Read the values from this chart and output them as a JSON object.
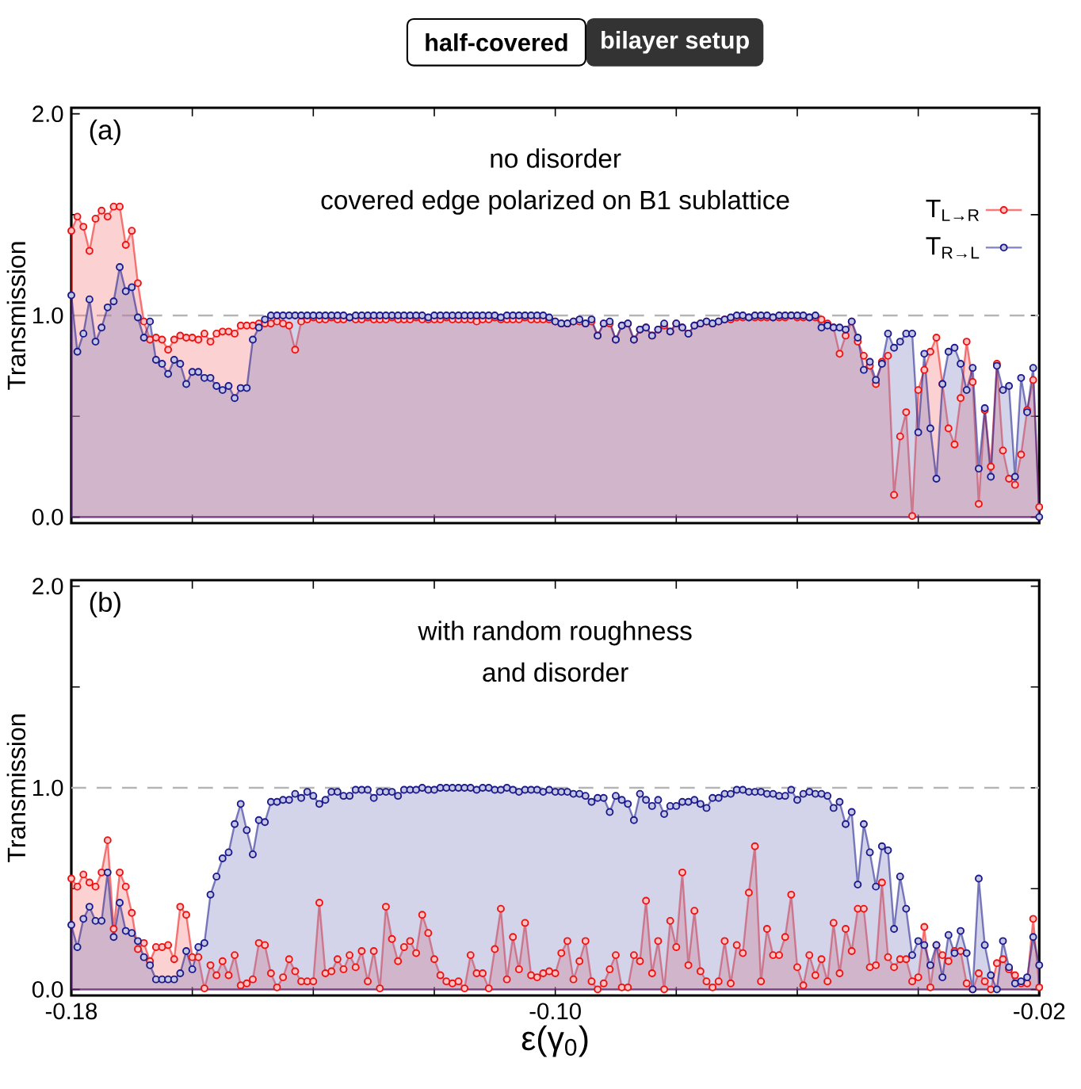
{
  "chart_data": [
    {
      "type": "area",
      "title": "half-covered",
      "subtitle": "bilayer setup",
      "ylabel": "Transmission",
      "annotations": [
        "(a)",
        "no disorder",
        "covered edge polarized on B1 sublattice"
      ],
      "xlim": [
        -0.18,
        -0.02
      ],
      "ylim": [
        -0.03,
        2.03
      ],
      "xticks": [
        -0.18,
        {
          "value": -0.16,
          "label": null
        },
        {
          "value": -0.14,
          "label": null
        },
        {
          "value": -0.12,
          "label": null
        },
        {
          "value": -0.1,
          "label": null
        },
        {
          "value": -0.08,
          "label": null
        },
        {
          "value": -0.06,
          "label": null
        },
        {
          "value": -0.04,
          "label": null
        },
        -0.02
      ],
      "yticks": [
        {
          "value": 0,
          "label": "0.0"
        },
        {
          "value": 0.5,
          "label": null
        },
        {
          "value": 1,
          "label": "1.0"
        },
        {
          "value": 1.5,
          "label": null
        },
        {
          "value": 2,
          "label": "2.0"
        }
      ],
      "tick_labels": "y",
      "legend": "top right",
      "marker": "circle",
      "line_style": "solid",
      "ref_lines": [
        {
          "axis": "y",
          "value": 1,
          "color": "#b4b4b4",
          "line_style": "dashed"
        }
      ],
      "x": [
        -0.18,
        -0.179,
        -0.178,
        -0.177,
        -0.176,
        -0.175,
        -0.174,
        -0.173,
        -0.172,
        -0.171,
        -0.17,
        -0.169,
        -0.168,
        -0.167,
        -0.166,
        -0.165,
        -0.164,
        -0.163,
        -0.162,
        -0.161,
        -0.16,
        -0.159,
        -0.158,
        -0.157,
        -0.156,
        -0.155,
        -0.154,
        -0.153,
        -0.152,
        -0.151,
        -0.15,
        -0.149,
        -0.148,
        -0.147,
        -0.146,
        -0.145,
        -0.144,
        -0.143,
        -0.142,
        -0.141,
        -0.14,
        -0.139,
        -0.138,
        -0.137,
        -0.136,
        -0.135,
        -0.134,
        -0.133,
        -0.132,
        -0.131,
        -0.13,
        -0.129,
        -0.128,
        -0.127,
        -0.126,
        -0.125,
        -0.124,
        -0.123,
        -0.122,
        -0.121,
        -0.12,
        -0.119,
        -0.118,
        -0.117,
        -0.116,
        -0.115,
        -0.114,
        -0.113,
        -0.112,
        -0.111,
        -0.11,
        -0.109,
        -0.108,
        -0.107,
        -0.106,
        -0.105,
        -0.104,
        -0.103,
        -0.102,
        -0.101,
        -0.1,
        -0.099,
        -0.098,
        -0.097,
        -0.096,
        -0.095,
        -0.094,
        -0.093,
        -0.092,
        -0.091,
        -0.09,
        -0.089,
        -0.088,
        -0.087,
        -0.086,
        -0.085,
        -0.084,
        -0.083,
        -0.082,
        -0.081,
        -0.08,
        -0.079,
        -0.078,
        -0.077,
        -0.076,
        -0.075,
        -0.074,
        -0.073,
        -0.072,
        -0.071,
        -0.07,
        -0.069,
        -0.068,
        -0.067,
        -0.066,
        -0.065,
        -0.064,
        -0.063,
        -0.062,
        -0.061,
        -0.06,
        -0.059,
        -0.058,
        -0.057,
        -0.056,
        -0.055,
        -0.054,
        -0.053,
        -0.052,
        -0.051,
        -0.05,
        -0.049,
        -0.048,
        -0.047,
        -0.046,
        -0.045,
        -0.044,
        -0.043,
        -0.042,
        -0.041,
        -0.04,
        -0.039,
        -0.038,
        -0.037,
        -0.036,
        -0.035,
        -0.034,
        -0.033,
        -0.032,
        -0.031,
        -0.03,
        -0.029,
        -0.028,
        -0.027,
        -0.026,
        -0.025,
        -0.024,
        -0.023,
        -0.022,
        -0.021,
        -0.02
      ],
      "series": [
        {
          "name": "T$_{L→R}$",
          "color": "#ee1111",
          "values": [
            1.42,
            1.49,
            1.44,
            1.32,
            1.48,
            1.52,
            1.49,
            1.54,
            1.54,
            1.35,
            1.42,
            1.16,
            0.97,
            0.88,
            0.89,
            0.88,
            0.83,
            0.88,
            0.9,
            0.89,
            0.89,
            0.88,
            0.91,
            0.87,
            0.91,
            0.92,
            0.92,
            0.91,
            0.95,
            0.95,
            0.95,
            0.96,
            0.96,
            0.96,
            0.97,
            0.96,
            0.95,
            0.83,
            0.97,
            0.98,
            0.99,
            0.98,
            0.98,
            0.99,
            0.98,
            0.98,
            0.99,
            0.98,
            0.98,
            0.99,
            0.98,
            0.98,
            0.98,
            0.99,
            0.98,
            0.98,
            0.98,
            0.99,
            0.98,
            0.98,
            0.98,
            0.98,
            0.99,
            0.98,
            0.98,
            0.98,
            0.98,
            0.97,
            0.98,
            0.98,
            0.99,
            0.98,
            0.98,
            0.98,
            0.98,
            0.99,
            0.98,
            0.98,
            0.98,
            0.98,
            0.97,
            0.96,
            0.96,
            0.97,
            0.97,
            0.96,
            0.97,
            0.9,
            0.96,
            0.96,
            0.88,
            0.95,
            0.96,
            0.88,
            0.93,
            0.94,
            0.9,
            0.93,
            0.95,
            0.92,
            0.96,
            0.94,
            0.91,
            0.95,
            0.96,
            0.97,
            0.96,
            0.97,
            0.98,
            0.98,
            0.99,
            0.99,
            0.99,
            0.99,
            0.99,
            0.99,
            0.99,
            0.99,
            0.99,
            1.0,
            0.99,
            0.99,
            0.99,
            0.99,
            0.98,
            0.96,
            0.94,
            0.81,
            0.9,
            0.97,
            0.87,
            0.8,
            0.75,
            0.66,
            0.77,
            0.8,
            0.11,
            0.4,
            0.52,
            0.005,
            0.63,
            0.73,
            0.82,
            0.89,
            0.66,
            0.44,
            0.36,
            0.59,
            0.87,
            0.67,
            0.065,
            0.53,
            0.25,
            0.76,
            0.33,
            0.19,
            0.16,
            0.31,
            0.53,
            0.68,
            0.05
          ]
        },
        {
          "name": "T$_{R→L}$",
          "color": "#1a1a8c",
          "values": [
            1.1,
            0.82,
            0.91,
            1.08,
            0.87,
            0.94,
            1.04,
            1.07,
            1.24,
            1.12,
            1.14,
            0.99,
            0.89,
            0.97,
            0.78,
            0.76,
            0.71,
            0.78,
            0.76,
            0.66,
            0.72,
            0.72,
            0.69,
            0.69,
            0.65,
            0.63,
            0.65,
            0.59,
            0.64,
            0.64,
            0.88,
            0.94,
            0.98,
            1.0,
            1.0,
            1.0,
            1.0,
            1.0,
            1.0,
            1.0,
            1.0,
            1.0,
            1.0,
            1.0,
            1.0,
            1.0,
            0.99,
            1.0,
            1.0,
            1.0,
            1.0,
            1.0,
            1.0,
            1.0,
            1.0,
            1.0,
            1.0,
            1.0,
            1.0,
            0.99,
            1.0,
            1.0,
            1.0,
            1.0,
            1.0,
            1.0,
            1.0,
            1.0,
            1.0,
            1.0,
            1.0,
            0.99,
            1.0,
            1.0,
            1.0,
            1.0,
            1.0,
            1.0,
            1.0,
            0.99,
            0.97,
            0.96,
            0.96,
            0.97,
            0.98,
            0.96,
            0.98,
            0.9,
            0.96,
            0.97,
            0.88,
            0.95,
            0.96,
            0.88,
            0.93,
            0.94,
            0.9,
            0.93,
            0.96,
            0.92,
            0.96,
            0.94,
            0.91,
            0.95,
            0.96,
            0.97,
            0.96,
            0.97,
            0.98,
            0.99,
            1.0,
            1.0,
            0.99,
            1.0,
            1.0,
            1.0,
            0.99,
            1.0,
            1.0,
            1.0,
            1.0,
            1.0,
            0.99,
            1.0,
            0.94,
            0.95,
            0.94,
            0.94,
            0.93,
            0.97,
            0.89,
            0.73,
            0.77,
            0.68,
            0.76,
            0.91,
            0.84,
            0.87,
            0.91,
            0.91,
            0.42,
            0.81,
            0.44,
            0.19,
            0.66,
            0.82,
            0.84,
            0.76,
            0.63,
            0.74,
            0.24,
            0.54,
            0.2,
            0.75,
            0.63,
            0.65,
            0.2,
            0.69,
            0.52,
            0.74,
            0
          ]
        }
      ]
    },
    {
      "type": "area",
      "xlabel": "ε(γ$_{0}$)",
      "ylabel": "Transmission",
      "annotations": [
        "(b)",
        "with random roughness",
        "and disorder"
      ],
      "xlim": [
        -0.18,
        -0.02
      ],
      "ylim": [
        -0.03,
        2.03
      ],
      "xticks": [
        -0.18,
        {
          "value": -0.16,
          "label": null
        },
        {
          "value": -0.14,
          "label": null
        },
        {
          "value": -0.12,
          "label": null
        },
        {
          "value": -0.1,
          "label": "-0.10"
        },
        {
          "value": -0.08,
          "label": null
        },
        {
          "value": -0.06,
          "label": null
        },
        {
          "value": -0.04,
          "label": null
        },
        -0.02
      ],
      "yticks": [
        {
          "value": 0,
          "label": "0.0"
        },
        {
          "value": 0.5,
          "label": null
        },
        {
          "value": 1,
          "label": "1.0"
        },
        {
          "value": 1.5,
          "label": null
        },
        {
          "value": 2,
          "label": "2.0"
        }
      ],
      "marker": "circle",
      "line_style": "solid",
      "ref_lines": [
        {
          "axis": "y",
          "value": 1,
          "color": "#b4b4b4",
          "line_style": "dashed"
        }
      ],
      "x": [
        -0.18,
        -0.179,
        -0.178,
        -0.177,
        -0.176,
        -0.175,
        -0.174,
        -0.173,
        -0.172,
        -0.171,
        -0.17,
        -0.169,
        -0.168,
        -0.167,
        -0.166,
        -0.165,
        -0.164,
        -0.163,
        -0.162,
        -0.161,
        -0.16,
        -0.159,
        -0.158,
        -0.157,
        -0.156,
        -0.155,
        -0.154,
        -0.153,
        -0.152,
        -0.151,
        -0.15,
        -0.149,
        -0.148,
        -0.147,
        -0.146,
        -0.145,
        -0.144,
        -0.143,
        -0.142,
        -0.141,
        -0.14,
        -0.139,
        -0.138,
        -0.137,
        -0.136,
        -0.135,
        -0.134,
        -0.133,
        -0.132,
        -0.131,
        -0.13,
        -0.129,
        -0.128,
        -0.127,
        -0.126,
        -0.125,
        -0.124,
        -0.123,
        -0.122,
        -0.121,
        -0.12,
        -0.119,
        -0.118,
        -0.117,
        -0.116,
        -0.115,
        -0.114,
        -0.113,
        -0.112,
        -0.111,
        -0.11,
        -0.109,
        -0.108,
        -0.107,
        -0.106,
        -0.105,
        -0.104,
        -0.103,
        -0.102,
        -0.101,
        -0.1,
        -0.099,
        -0.098,
        -0.097,
        -0.096,
        -0.095,
        -0.094,
        -0.093,
        -0.092,
        -0.091,
        -0.09,
        -0.089,
        -0.088,
        -0.087,
        -0.086,
        -0.085,
        -0.084,
        -0.083,
        -0.082,
        -0.081,
        -0.08,
        -0.079,
        -0.078,
        -0.077,
        -0.076,
        -0.075,
        -0.074,
        -0.073,
        -0.072,
        -0.071,
        -0.07,
        -0.069,
        -0.068,
        -0.067,
        -0.066,
        -0.065,
        -0.064,
        -0.063,
        -0.062,
        -0.061,
        -0.06,
        -0.059,
        -0.058,
        -0.057,
        -0.056,
        -0.055,
        -0.054,
        -0.053,
        -0.052,
        -0.051,
        -0.05,
        -0.049,
        -0.048,
        -0.047,
        -0.046,
        -0.045,
        -0.044,
        -0.043,
        -0.042,
        -0.041,
        -0.04,
        -0.039,
        -0.038,
        -0.037,
        -0.036,
        -0.035,
        -0.034,
        -0.033,
        -0.032,
        -0.031,
        -0.03,
        -0.029,
        -0.028,
        -0.027,
        -0.026,
        -0.025,
        -0.024,
        -0.023,
        -0.022,
        -0.021,
        -0.02
      ],
      "series": [
        {
          "color": "#ee1111",
          "values": [
            0.55,
            0.51,
            0.57,
            0.53,
            0.51,
            0.58,
            0.74,
            0.3,
            0.58,
            0.51,
            0.38,
            0.2,
            0.23,
            0.14,
            0.21,
            0.21,
            0.22,
            0.15,
            0.41,
            0.37,
            0.16,
            0.16,
            0.005,
            0.12,
            0.07,
            0.14,
            0.07,
            0.17,
            0.02,
            0.03,
            0.05,
            0.23,
            0.22,
            0.08,
            0.01,
            0.06,
            0.15,
            0.09,
            0.04,
            0.04,
            0.04,
            0.43,
            0.08,
            0.09,
            0.15,
            0.1,
            0.17,
            0.11,
            0.19,
            0.04,
            0.19,
            0.005,
            0.41,
            0.25,
            0.14,
            0.21,
            0.24,
            0.18,
            0.37,
            0.28,
            0.15,
            0.07,
            0.04,
            0.03,
            0.04,
            0.005,
            0.17,
            0.08,
            0.08,
            0.005,
            0.2,
            0.4,
            0.05,
            0.26,
            0.1,
            0.33,
            0.07,
            0.06,
            0.08,
            0.09,
            0.08,
            0.18,
            0.24,
            0.05,
            0.14,
            0.24,
            0.04,
            0,
            0.03,
            0.1,
            0.17,
            0.01,
            0.01,
            0.17,
            0.14,
            0.44,
            0.08,
            0.24,
            0,
            0.34,
            0.21,
            0.58,
            0.12,
            0.39,
            0.09,
            0.04,
            0.01,
            0.04,
            0.24,
            0.03,
            0.22,
            0.18,
            0.48,
            0.71,
            0.04,
            0.3,
            0.17,
            0.17,
            0.26,
            0.47,
            0.11,
            0.02,
            0.17,
            0.07,
            0.15,
            0.04,
            0.33,
            0.08,
            0.3,
            0.19,
            0.4,
            0.4,
            0.11,
            0.12,
            0.53,
            0.16,
            0.11,
            0.15,
            0.15,
            0.04,
            0.06,
            0.31,
            0.01,
            0.22,
            0.17,
            0.14,
            0.19,
            0.19,
            0.03,
            0,
            0.08,
            0.04,
            0,
            0.13,
            0.15,
            0.1,
            0.07,
            0.03,
            0.03,
            0.35,
            0.01
          ]
        },
        {
          "color": "#1a1a8c",
          "values": [
            0.32,
            0.21,
            0.35,
            0.41,
            0.34,
            0.34,
            0.58,
            0.26,
            0.43,
            0.29,
            0.28,
            0.24,
            0.16,
            0.12,
            0.05,
            0.05,
            0.05,
            0.05,
            0.08,
            0.19,
            0.1,
            0.21,
            0.23,
            0.47,
            0.56,
            0.65,
            0.68,
            0.82,
            0.92,
            0.79,
            0.67,
            0.84,
            0.83,
            0.93,
            0.93,
            0.94,
            0.94,
            0.97,
            0.95,
            0.98,
            0.96,
            0.92,
            0.94,
            0.98,
            0.98,
            0.96,
            0.96,
            0.99,
            0.99,
            0.99,
            0.95,
            0.98,
            0.98,
            0.98,
            0.96,
            0.99,
            0.99,
            0.99,
            1.0,
            0.99,
            0.99,
            1.0,
            1.0,
            1.0,
            1.0,
            1.0,
            1.0,
            0.99,
            1.0,
            1.0,
            0.99,
            0.99,
            1.0,
            0.99,
            0.98,
            0.99,
            0.99,
            0.99,
            0.98,
            0.99,
            0.98,
            0.98,
            0.98,
            0.97,
            0.97,
            0.96,
            0.93,
            0.95,
            0.95,
            0.88,
            0.96,
            0.94,
            0.92,
            0.84,
            0.97,
            0.94,
            0.91,
            0.94,
            0.87,
            0.91,
            0.91,
            0.93,
            0.93,
            0.94,
            0.92,
            0.9,
            0.95,
            0.95,
            0.97,
            0.97,
            0.99,
            0.99,
            0.98,
            0.98,
            0.98,
            0.97,
            0.97,
            0.96,
            0.96,
            0.99,
            0.94,
            0.97,
            0.98,
            0.97,
            0.97,
            0.96,
            0.9,
            0.93,
            0.82,
            0.88,
            0.52,
            0.82,
            0.68,
            0.51,
            0.71,
            0.69,
            0.3,
            0.56,
            0.4,
            0.17,
            0.24,
            0.22,
            0.12,
            0.22,
            0.06,
            0.27,
            0.18,
            0.29,
            0.18,
            0,
            0.55,
            0.22,
            0.07,
            0,
            0.24,
            0.11,
            0.03,
            0.04,
            0.06,
            0.26,
            0.12
          ]
        }
      ]
    }
  ]
}
